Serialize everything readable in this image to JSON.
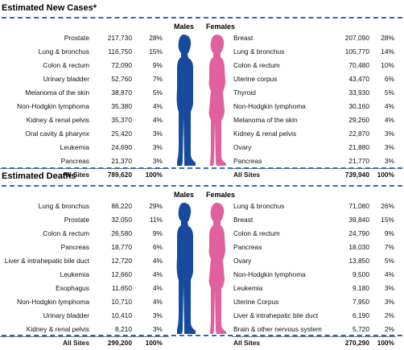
{
  "colors": {
    "male": "#174a9c",
    "female": "#e0619d",
    "rule": "#2a6db5"
  },
  "chart_data": [
    {
      "type": "table",
      "title": "Estimated New Cases*",
      "columns": [
        "Males",
        "Females"
      ],
      "males": [
        {
          "site": "Prostate",
          "cases": "217,730",
          "pct": "28%"
        },
        {
          "site": "Lung & bronchus",
          "cases": "116,750",
          "pct": "15%"
        },
        {
          "site": "Colon & rectum",
          "cases": "72,090",
          "pct": "9%"
        },
        {
          "site": "Urinary bladder",
          "cases": "52,760",
          "pct": "7%"
        },
        {
          "site": "Melanoma of the skin",
          "cases": "38,870",
          "pct": "5%"
        },
        {
          "site": "Non-Hodgkin lymphoma",
          "cases": "35,380",
          "pct": "4%"
        },
        {
          "site": "Kidney & renal pelvis",
          "cases": "35,370",
          "pct": "4%"
        },
        {
          "site": "Oral cavity & pharynx",
          "cases": "25,420",
          "pct": "3%"
        },
        {
          "site": "Leukemia",
          "cases": "24,690",
          "pct": "3%"
        },
        {
          "site": "Pancreas",
          "cases": "21,370",
          "pct": "3%"
        }
      ],
      "males_total": {
        "site": "All Sites",
        "cases": "789,620",
        "pct": "100%"
      },
      "females": [
        {
          "site": "Breast",
          "cases": "207,090",
          "pct": "28%"
        },
        {
          "site": "Lung & bronchus",
          "cases": "105,770",
          "pct": "14%"
        },
        {
          "site": "Colon & rectum",
          "cases": "70,480",
          "pct": "10%"
        },
        {
          "site": "Uterine corpus",
          "cases": "43,470",
          "pct": "6%"
        },
        {
          "site": "Thyroid",
          "cases": "33,930",
          "pct": "5%"
        },
        {
          "site": "Non-Hodgkin lymphoma",
          "cases": "30,160",
          "pct": "4%"
        },
        {
          "site": "Melanoma of the skin",
          "cases": "29,260",
          "pct": "4%"
        },
        {
          "site": "Kidney & renal pelvis",
          "cases": "22,870",
          "pct": "3%"
        },
        {
          "site": "Ovary",
          "cases": "21,880",
          "pct": "3%"
        },
        {
          "site": "Pancreas",
          "cases": "21,770",
          "pct": "3%"
        }
      ],
      "females_total": {
        "site": "All Sites",
        "cases": "739,940",
        "pct": "100%"
      }
    },
    {
      "type": "table",
      "title": "Estimated Deaths",
      "columns": [
        "Males",
        "Females"
      ],
      "males": [
        {
          "site": "Lung & bronchus",
          "cases": "86,220",
          "pct": "29%"
        },
        {
          "site": "Prostate",
          "cases": "32,050",
          "pct": "11%"
        },
        {
          "site": "Colon & rectum",
          "cases": "26,580",
          "pct": "9%"
        },
        {
          "site": "Pancreas",
          "cases": "18,770",
          "pct": "6%"
        },
        {
          "site": "Liver & intrahepatic bile duct",
          "cases": "12,720",
          "pct": "4%"
        },
        {
          "site": "Leukemia",
          "cases": "12,660",
          "pct": "4%"
        },
        {
          "site": "Esophagus",
          "cases": "11,650",
          "pct": "4%"
        },
        {
          "site": "Non-Hodgkin lymphoma",
          "cases": "10,710",
          "pct": "4%"
        },
        {
          "site": "Urinary bladder",
          "cases": "10,410",
          "pct": "3%"
        },
        {
          "site": "Kidney & renal pelvis",
          "cases": "8,210",
          "pct": "3%"
        }
      ],
      "males_total": {
        "site": "All Sites",
        "cases": "299,200",
        "pct": "100%"
      },
      "females": [
        {
          "site": "Lung & bronchus",
          "cases": "71,080",
          "pct": "26%"
        },
        {
          "site": "Breast",
          "cases": "39,840",
          "pct": "15%"
        },
        {
          "site": "Colon & rectum",
          "cases": "24,790",
          "pct": "9%"
        },
        {
          "site": "Pancreas",
          "cases": "18,030",
          "pct": "7%"
        },
        {
          "site": "Ovary",
          "cases": "13,850",
          "pct": "5%"
        },
        {
          "site": "Non-Hodgkin lymphoma",
          "cases": "9,500",
          "pct": "4%"
        },
        {
          "site": "Leukemia",
          "cases": "9,180",
          "pct": "3%"
        },
        {
          "site": "Uterine Corpus",
          "cases": "7,950",
          "pct": "3%"
        },
        {
          "site": "Liver & intrahepatic bile duct",
          "cases": "6,190",
          "pct": "2%"
        },
        {
          "site": "Brain & other nervous system",
          "cases": "5,720",
          "pct": "2%"
        }
      ],
      "females_total": {
        "site": "All Sites",
        "cases": "270,290",
        "pct": "100%"
      }
    }
  ]
}
